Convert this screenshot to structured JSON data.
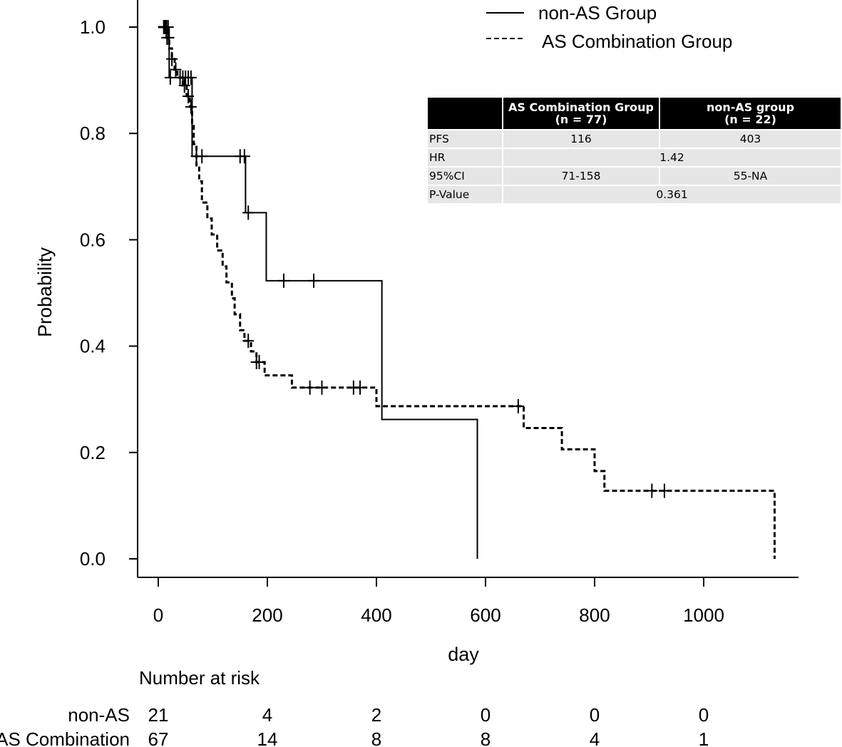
{
  "chart_data": {
    "type": "line",
    "subtype": "kaplan-meier",
    "xlabel": "day",
    "ylabel": "Probability",
    "xlim": [
      -35,
      1175
    ],
    "ylim": [
      -0.035,
      1.045
    ],
    "x_ticks": [
      0,
      200,
      400,
      600,
      800,
      1000
    ],
    "y_ticks": [
      0.0,
      0.2,
      0.4,
      0.6,
      0.8,
      1.0
    ],
    "x_tick_labels": [
      "0",
      "200",
      "400",
      "600",
      "800",
      "1000"
    ],
    "y_tick_labels": [
      "0.0",
      "0.2",
      "0.4",
      "0.6",
      "0.8",
      "1.0"
    ],
    "legend": {
      "position": "top-right",
      "entries": [
        "non-AS Group",
        "AS Combination Group"
      ]
    },
    "series": [
      {
        "name": "non-AS Group",
        "style": "solid",
        "steps": [
          [
            0,
            1.0
          ],
          [
            20,
            0.905
          ],
          [
            62,
            0.757
          ],
          [
            160,
            0.651
          ],
          [
            198,
            0.523
          ],
          [
            410,
            0.262
          ],
          [
            585,
            0.0
          ]
        ],
        "end_x": 585,
        "censor_x": [
          10,
          12,
          15,
          18,
          22,
          45,
          50,
          55,
          60,
          70,
          80,
          150,
          158,
          165,
          230,
          285
        ]
      },
      {
        "name": "AS Combination Group",
        "style": "dashed",
        "steps": [
          [
            0,
            1.0
          ],
          [
            15,
            0.98
          ],
          [
            20,
            0.96
          ],
          [
            25,
            0.94
          ],
          [
            30,
            0.92
          ],
          [
            35,
            0.905
          ],
          [
            45,
            0.89
          ],
          [
            52,
            0.87
          ],
          [
            58,
            0.85
          ],
          [
            62,
            0.82
          ],
          [
            65,
            0.78
          ],
          [
            70,
            0.74
          ],
          [
            75,
            0.71
          ],
          [
            80,
            0.67
          ],
          [
            90,
            0.64
          ],
          [
            98,
            0.61
          ],
          [
            108,
            0.58
          ],
          [
            118,
            0.55
          ],
          [
            125,
            0.52
          ],
          [
            135,
            0.49
          ],
          [
            140,
            0.46
          ],
          [
            150,
            0.43
          ],
          [
            158,
            0.41
          ],
          [
            170,
            0.39
          ],
          [
            180,
            0.37
          ],
          [
            195,
            0.345
          ],
          [
            245,
            0.322
          ],
          [
            400,
            0.287
          ],
          [
            670,
            0.246
          ],
          [
            740,
            0.206
          ],
          [
            800,
            0.165
          ],
          [
            818,
            0.128
          ],
          [
            1130,
            0.0
          ]
        ],
        "end_x": 1130,
        "censor_x": [
          14,
          16,
          19,
          25,
          32,
          40,
          48,
          55,
          60,
          165,
          180,
          185,
          278,
          300,
          358,
          370,
          660,
          905,
          928
        ]
      }
    ],
    "risk_table": {
      "title": "Number at risk",
      "times": [
        0,
        200,
        400,
        600,
        800,
        1000
      ],
      "rows": [
        {
          "label": "non-AS",
          "values": [
            "21",
            "4",
            "2",
            "0",
            "0",
            "0"
          ]
        },
        {
          "label": "AS Combination",
          "values": [
            "67",
            "14",
            "8",
            "8",
            "4",
            "1"
          ]
        }
      ]
    }
  },
  "stats_table": {
    "headers": [
      {
        "line1": "",
        "line2": ""
      },
      {
        "line1": "AS Combination Group",
        "line2": "(n = 77)"
      },
      {
        "line1": "non-AS group",
        "line2": "(n = 22)"
      }
    ],
    "rows": [
      {
        "label": "PFS",
        "as_value": "116",
        "non_as_value": "403"
      },
      {
        "label": "HR",
        "merged_value": "1.42"
      },
      {
        "label": "95%CI",
        "as_value": "71-158",
        "non_as_value": "55-NA"
      },
      {
        "label": "P-Value",
        "merged_value": "0.361"
      }
    ]
  }
}
